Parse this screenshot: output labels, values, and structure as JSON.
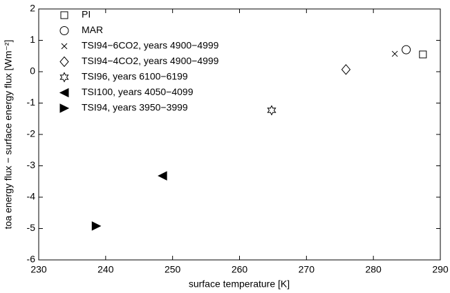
{
  "chart_data": {
    "type": "scatter",
    "xlabel": "surface temperature [K]",
    "ylabel": "toa energy flux − surface energy flux [Wm⁻²]",
    "xlim": [
      230,
      290
    ],
    "xticks": [
      230,
      240,
      250,
      260,
      270,
      280,
      290
    ],
    "ylim": [
      -6,
      2
    ],
    "yticks": [
      -6,
      -5,
      -4,
      -3,
      -2,
      -1,
      0,
      1,
      2
    ],
    "legend": "upper-left",
    "series": [
      {
        "name": "PI",
        "marker": "square",
        "color": "#000000",
        "x": [
          287.4
        ],
        "values": [
          0.55
        ]
      },
      {
        "name": "MAR",
        "marker": "circle",
        "color": "#000000",
        "x": [
          284.9
        ],
        "values": [
          0.7
        ]
      },
      {
        "name": "TSI94−6CO2, years 4900−4999",
        "marker": "x",
        "color": "#000000",
        "x": [
          283.2
        ],
        "values": [
          0.57
        ]
      },
      {
        "name": "TSI94−4CO2, years 4900−4999",
        "marker": "diamond",
        "color": "#000000",
        "x": [
          275.9
        ],
        "values": [
          0.07
        ]
      },
      {
        "name": "TSI96, years 6100−6199",
        "marker": "hexagram",
        "color": "#000000",
        "x": [
          264.8
        ],
        "values": [
          -1.23
        ]
      },
      {
        "name": "TSI100, years 4050−4099",
        "marker": "triangle-left",
        "color": "#000000",
        "x": [
          248.5
        ],
        "values": [
          -3.32
        ]
      },
      {
        "name": "TSI94, years 3950−3999",
        "marker": "triangle-right",
        "color": "#000000",
        "x": [
          238.6
        ],
        "values": [
          -4.92
        ]
      }
    ]
  }
}
